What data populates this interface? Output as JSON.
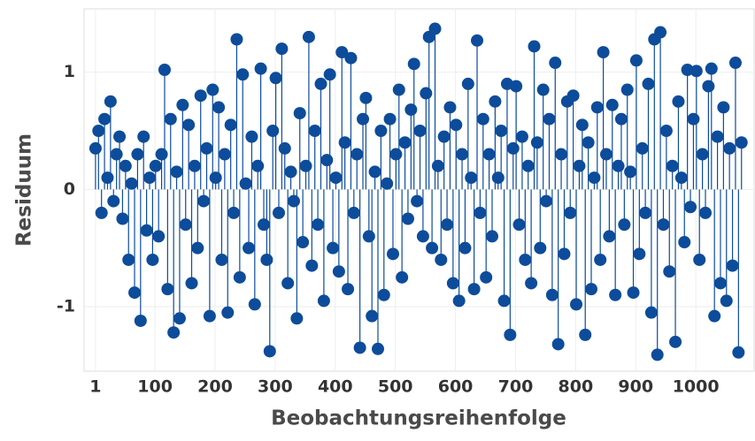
{
  "chart_data": {
    "type": "stem",
    "color": "#0d4c9a",
    "x_label": "Beobachtungsreihenfolge",
    "y_label": "Residuum",
    "xlim": [
      -18,
      1097
    ],
    "ylim": [
      -1.55,
      1.54
    ],
    "xticks": [
      1,
      100,
      200,
      300,
      400,
      500,
      600,
      700,
      800,
      900,
      1000
    ],
    "yticks": [
      -1,
      0,
      1
    ],
    "grid": true,
    "x": [
      1,
      6,
      11,
      16,
      21,
      26,
      31,
      36,
      41,
      46,
      51,
      56,
      61,
      66,
      71,
      76,
      81,
      86,
      91,
      96,
      101,
      106,
      111,
      116,
      121,
      126,
      131,
      136,
      141,
      146,
      151,
      156,
      161,
      166,
      171,
      176,
      181,
      186,
      191,
      196,
      201,
      206,
      211,
      216,
      221,
      226,
      231,
      236,
      241,
      246,
      251,
      256,
      261,
      266,
      271,
      276,
      281,
      286,
      291,
      296,
      301,
      306,
      311,
      316,
      321,
      326,
      331,
      336,
      341,
      346,
      351,
      356,
      361,
      366,
      371,
      376,
      381,
      386,
      391,
      396,
      401,
      406,
      411,
      416,
      421,
      426,
      431,
      436,
      441,
      446,
      451,
      456,
      461,
      466,
      471,
      476,
      481,
      486,
      491,
      496,
      501,
      506,
      511,
      516,
      521,
      526,
      531,
      536,
      541,
      546,
      551,
      556,
      561,
      566,
      571,
      576,
      581,
      586,
      591,
      596,
      601,
      606,
      611,
      616,
      621,
      626,
      631,
      636,
      641,
      646,
      651,
      656,
      661,
      666,
      671,
      676,
      681,
      686,
      691,
      696,
      701,
      706,
      711,
      716,
      721,
      726,
      731,
      736,
      741,
      746,
      751,
      756,
      761,
      766,
      771,
      776,
      781,
      786,
      791,
      796,
      801,
      806,
      811,
      816,
      821,
      826,
      831,
      836,
      841,
      846,
      851,
      856,
      861,
      866,
      871,
      876,
      881,
      886,
      891,
      896,
      901,
      906,
      911,
      916,
      921,
      926,
      931,
      936,
      941,
      946,
      951,
      956,
      961,
      966,
      971,
      976,
      981,
      986,
      991,
      996,
      1001,
      1006,
      1011,
      1016,
      1021,
      1026,
      1031,
      1036,
      1041,
      1046,
      1051,
      1056,
      1061,
      1066,
      1071,
      1076
    ],
    "values": [
      0.35,
      0.5,
      -0.2,
      0.6,
      0.1,
      0.75,
      -0.1,
      0.3,
      0.45,
      -0.25,
      0.2,
      -0.6,
      0.05,
      -0.88,
      0.3,
      -1.12,
      0.45,
      -0.35,
      0.1,
      -0.6,
      0.2,
      -0.4,
      0.3,
      1.02,
      -0.85,
      0.6,
      -1.22,
      0.15,
      -1.1,
      0.72,
      -0.3,
      0.55,
      -0.8,
      0.2,
      -0.5,
      0.8,
      -0.1,
      0.35,
      -1.08,
      0.85,
      0.1,
      0.7,
      -0.6,
      0.3,
      -1.05,
      0.55,
      -0.2,
      1.28,
      -0.75,
      0.98,
      0.05,
      -0.5,
      0.45,
      -0.98,
      0.2,
      1.03,
      -0.3,
      -0.6,
      -1.38,
      0.5,
      0.95,
      -0.2,
      1.2,
      0.35,
      -0.8,
      0.15,
      -0.1,
      -1.1,
      0.65,
      -0.45,
      0.2,
      1.3,
      -0.65,
      0.5,
      -0.3,
      0.9,
      -0.95,
      0.25,
      0.98,
      -0.5,
      0.1,
      -0.7,
      1.17,
      0.4,
      -0.85,
      1.12,
      -0.2,
      0.3,
      -1.35,
      0.6,
      0.78,
      -0.4,
      -1.08,
      0.15,
      -1.36,
      0.5,
      -0.9,
      0.05,
      0.6,
      -0.55,
      0.3,
      0.85,
      -0.75,
      0.4,
      -0.25,
      0.68,
      1.07,
      -0.1,
      0.5,
      -0.4,
      0.82,
      1.3,
      -0.5,
      1.37,
      0.2,
      -0.6,
      0.45,
      -0.3,
      0.7,
      -0.8,
      0.55,
      -0.95,
      0.3,
      -0.5,
      0.9,
      0.1,
      -0.85,
      1.27,
      -0.2,
      0.6,
      -0.75,
      0.3,
      -0.4,
      0.75,
      0.1,
      0.5,
      -0.95,
      0.9,
      -1.24,
      0.35,
      0.88,
      -0.3,
      0.45,
      -0.6,
      0.2,
      -0.8,
      1.22,
      0.4,
      -0.5,
      0.85,
      -0.1,
      0.6,
      -0.9,
      1.08,
      -1.32,
      0.3,
      -0.55,
      0.75,
      -0.2,
      0.8,
      -0.98,
      0.2,
      0.55,
      -1.24,
      0.4,
      -0.85,
      0.1,
      0.7,
      -0.6,
      1.17,
      0.3,
      -0.4,
      0.72,
      -0.9,
      0.2,
      0.6,
      -0.3,
      0.85,
      0.15,
      -0.88,
      1.1,
      -0.55,
      0.35,
      -0.2,
      0.9,
      -1.05,
      1.28,
      -1.41,
      1.34,
      -0.3,
      0.5,
      -0.7,
      0.2,
      -1.3,
      0.75,
      0.1,
      -0.45,
      1.02,
      -0.15,
      0.6,
      1.01,
      -0.6,
      0.3,
      -0.2,
      0.88,
      1.03,
      -1.08,
      0.45,
      -0.8,
      0.7,
      -0.95,
      0.35,
      -0.65,
      1.08,
      -1.39,
      0.4
    ]
  }
}
